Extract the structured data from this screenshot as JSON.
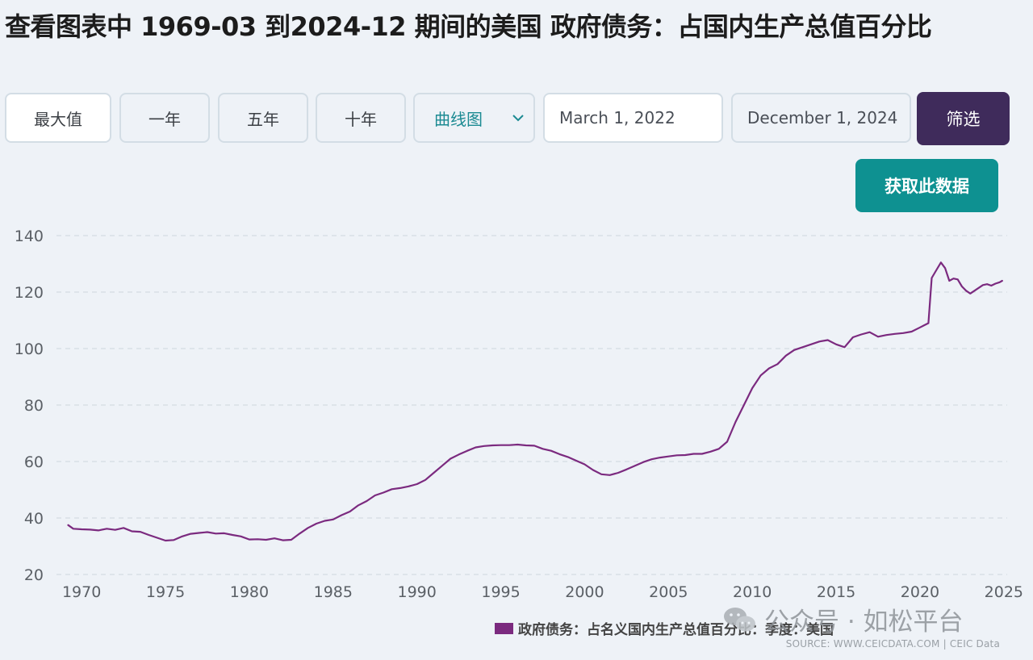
{
  "title": "查看图表中 1969-03 到2024-12 期间的美国 政府债务：占国内生产总值百分比",
  "controls": {
    "range_buttons": [
      "最大值",
      "一年",
      "五年",
      "十年"
    ],
    "chart_type": "曲线图",
    "start_date": "March 1, 2022",
    "end_date": "December 1, 2024",
    "filter_label": "筛选",
    "get_data_label": "获取此数据"
  },
  "colors": {
    "series": "#7b2a7f",
    "filter_button": "#3f2b5b",
    "get_data_button": "#0e9191",
    "select_text": "#1b8a92"
  },
  "icons": {
    "select": "chevron-down-icon",
    "watermark": "wechat-icon"
  },
  "watermark": "公众号 · 如松平台",
  "source": "SOURCE: WWW.CEICDATA.COM | CEIC Data",
  "chart_data": {
    "type": "line",
    "title": "",
    "xlabel": "",
    "ylabel": "",
    "xlim": [
      1968.5,
      2025.2
    ],
    "ylim": [
      20,
      140
    ],
    "xticks": [
      1970,
      1975,
      1980,
      1985,
      1990,
      1995,
      2000,
      2005,
      2010,
      2015,
      2020,
      2025
    ],
    "yticks": [
      20,
      40,
      60,
      80,
      100,
      120,
      140
    ],
    "grid": "horizontal dashed",
    "legend_position": "bottom-center",
    "series": [
      {
        "name": "政府债务：占名义国内生产总值百分比：季度：美国",
        "points": [
          [
            1969.2,
            37.5
          ],
          [
            1969.5,
            36.2
          ],
          [
            1970.0,
            36.0
          ],
          [
            1970.5,
            35.9
          ],
          [
            1971.0,
            35.6
          ],
          [
            1971.5,
            36.2
          ],
          [
            1972.0,
            35.8
          ],
          [
            1972.5,
            36.5
          ],
          [
            1973.0,
            35.3
          ],
          [
            1973.5,
            35.1
          ],
          [
            1974.0,
            34.0
          ],
          [
            1974.5,
            33.0
          ],
          [
            1975.0,
            32.0
          ],
          [
            1975.5,
            32.2
          ],
          [
            1976.0,
            33.5
          ],
          [
            1976.5,
            34.4
          ],
          [
            1977.0,
            34.7
          ],
          [
            1977.5,
            35.0
          ],
          [
            1978.0,
            34.5
          ],
          [
            1978.5,
            34.6
          ],
          [
            1979.0,
            34.0
          ],
          [
            1979.5,
            33.5
          ],
          [
            1980.0,
            32.4
          ],
          [
            1980.5,
            32.5
          ],
          [
            1981.0,
            32.3
          ],
          [
            1981.5,
            32.8
          ],
          [
            1982.0,
            32.1
          ],
          [
            1982.5,
            32.3
          ],
          [
            1983.0,
            34.5
          ],
          [
            1983.5,
            36.5
          ],
          [
            1984.0,
            38.0
          ],
          [
            1984.5,
            39.0
          ],
          [
            1985.0,
            39.5
          ],
          [
            1985.5,
            41.0
          ],
          [
            1986.0,
            42.3
          ],
          [
            1986.5,
            44.5
          ],
          [
            1987.0,
            46.0
          ],
          [
            1987.5,
            48.0
          ],
          [
            1988.0,
            49.0
          ],
          [
            1988.5,
            50.2
          ],
          [
            1989.0,
            50.6
          ],
          [
            1989.5,
            51.2
          ],
          [
            1990.0,
            52.0
          ],
          [
            1990.5,
            53.5
          ],
          [
            1991.0,
            56.0
          ],
          [
            1991.5,
            58.5
          ],
          [
            1992.0,
            61.0
          ],
          [
            1992.5,
            62.5
          ],
          [
            1993.0,
            63.8
          ],
          [
            1993.5,
            65.0
          ],
          [
            1994.0,
            65.5
          ],
          [
            1994.5,
            65.7
          ],
          [
            1995.0,
            65.8
          ],
          [
            1995.5,
            65.8
          ],
          [
            1996.0,
            66.0
          ],
          [
            1996.5,
            65.7
          ],
          [
            1997.0,
            65.6
          ],
          [
            1997.5,
            64.5
          ],
          [
            1998.0,
            63.8
          ],
          [
            1998.5,
            62.6
          ],
          [
            1999.0,
            61.6
          ],
          [
            1999.5,
            60.3
          ],
          [
            2000.0,
            59.0
          ],
          [
            2000.5,
            57.0
          ],
          [
            2001.0,
            55.5
          ],
          [
            2001.5,
            55.2
          ],
          [
            2002.0,
            56.0
          ],
          [
            2002.5,
            57.2
          ],
          [
            2003.0,
            58.5
          ],
          [
            2003.5,
            59.8
          ],
          [
            2004.0,
            60.8
          ],
          [
            2004.5,
            61.4
          ],
          [
            2005.0,
            61.8
          ],
          [
            2005.5,
            62.2
          ],
          [
            2006.0,
            62.3
          ],
          [
            2006.5,
            62.7
          ],
          [
            2007.0,
            62.7
          ],
          [
            2007.5,
            63.5
          ],
          [
            2008.0,
            64.5
          ],
          [
            2008.5,
            67.0
          ],
          [
            2009.0,
            74.0
          ],
          [
            2009.5,
            80.0
          ],
          [
            2010.0,
            86.0
          ],
          [
            2010.5,
            90.5
          ],
          [
            2011.0,
            93.0
          ],
          [
            2011.5,
            94.5
          ],
          [
            2012.0,
            97.5
          ],
          [
            2012.5,
            99.5
          ],
          [
            2013.0,
            100.5
          ],
          [
            2013.5,
            101.5
          ],
          [
            2014.0,
            102.5
          ],
          [
            2014.5,
            103.0
          ],
          [
            2015.0,
            101.5
          ],
          [
            2015.5,
            100.5
          ],
          [
            2016.0,
            104.0
          ],
          [
            2016.5,
            105.0
          ],
          [
            2017.0,
            105.8
          ],
          [
            2017.5,
            104.2
          ],
          [
            2018.0,
            104.8
          ],
          [
            2018.5,
            105.2
          ],
          [
            2019.0,
            105.5
          ],
          [
            2019.5,
            106.0
          ],
          [
            2020.0,
            107.5
          ],
          [
            2020.5,
            109.0
          ],
          [
            2020.7,
            125.0
          ],
          [
            2021.0,
            128.0
          ],
          [
            2021.25,
            130.5
          ],
          [
            2021.5,
            128.5
          ],
          [
            2021.75,
            124.0
          ],
          [
            2022.0,
            124.8
          ],
          [
            2022.25,
            124.5
          ],
          [
            2022.5,
            122.0
          ],
          [
            2022.75,
            120.5
          ],
          [
            2023.0,
            119.5
          ],
          [
            2023.25,
            120.5
          ],
          [
            2023.5,
            121.5
          ],
          [
            2023.75,
            122.5
          ],
          [
            2024.0,
            122.8
          ],
          [
            2024.25,
            122.3
          ],
          [
            2024.5,
            123.0
          ],
          [
            2024.75,
            123.5
          ],
          [
            2024.9,
            124.0
          ]
        ]
      }
    ]
  }
}
